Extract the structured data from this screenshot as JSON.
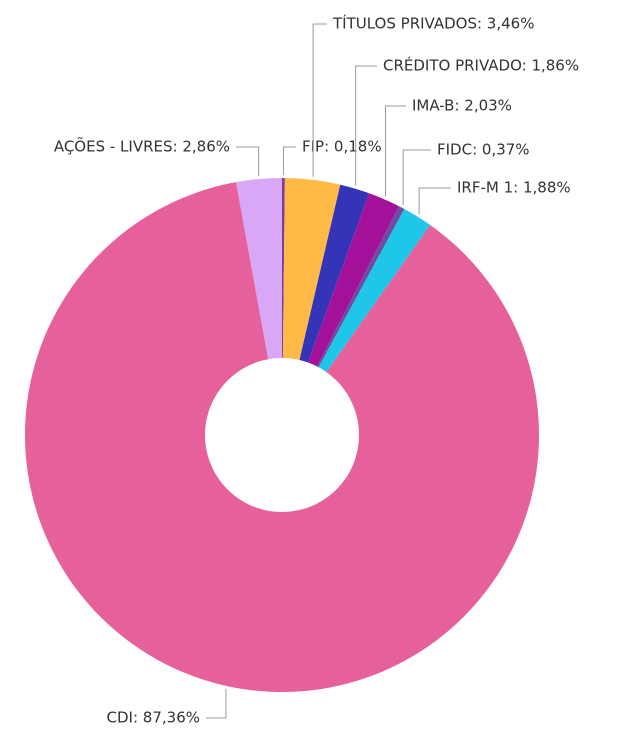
{
  "chart_data": {
    "type": "donut",
    "value_labels": [
      "FIP: 0,18%",
      "TÍTULOS PRIVADOS: 3,46%",
      "CRÉDITO PRIVADO: 1,86%",
      "IMA-B: 2,03%",
      "FIDC: 0,37%",
      "IRF-M 1: 1,88%",
      "CDI: 87,36%",
      "AÇÕES - LIVRES: 2,86%"
    ],
    "values": [
      0.18,
      3.46,
      1.86,
      2.03,
      0.37,
      1.88,
      87.36,
      2.86
    ],
    "colors": [
      "#7a3f9e",
      "#ffb946",
      "#3434b8",
      "#a3119b",
      "#6b4f9e",
      "#1ec6ea",
      "#e6619b",
      "#d8a8f6"
    ]
  }
}
